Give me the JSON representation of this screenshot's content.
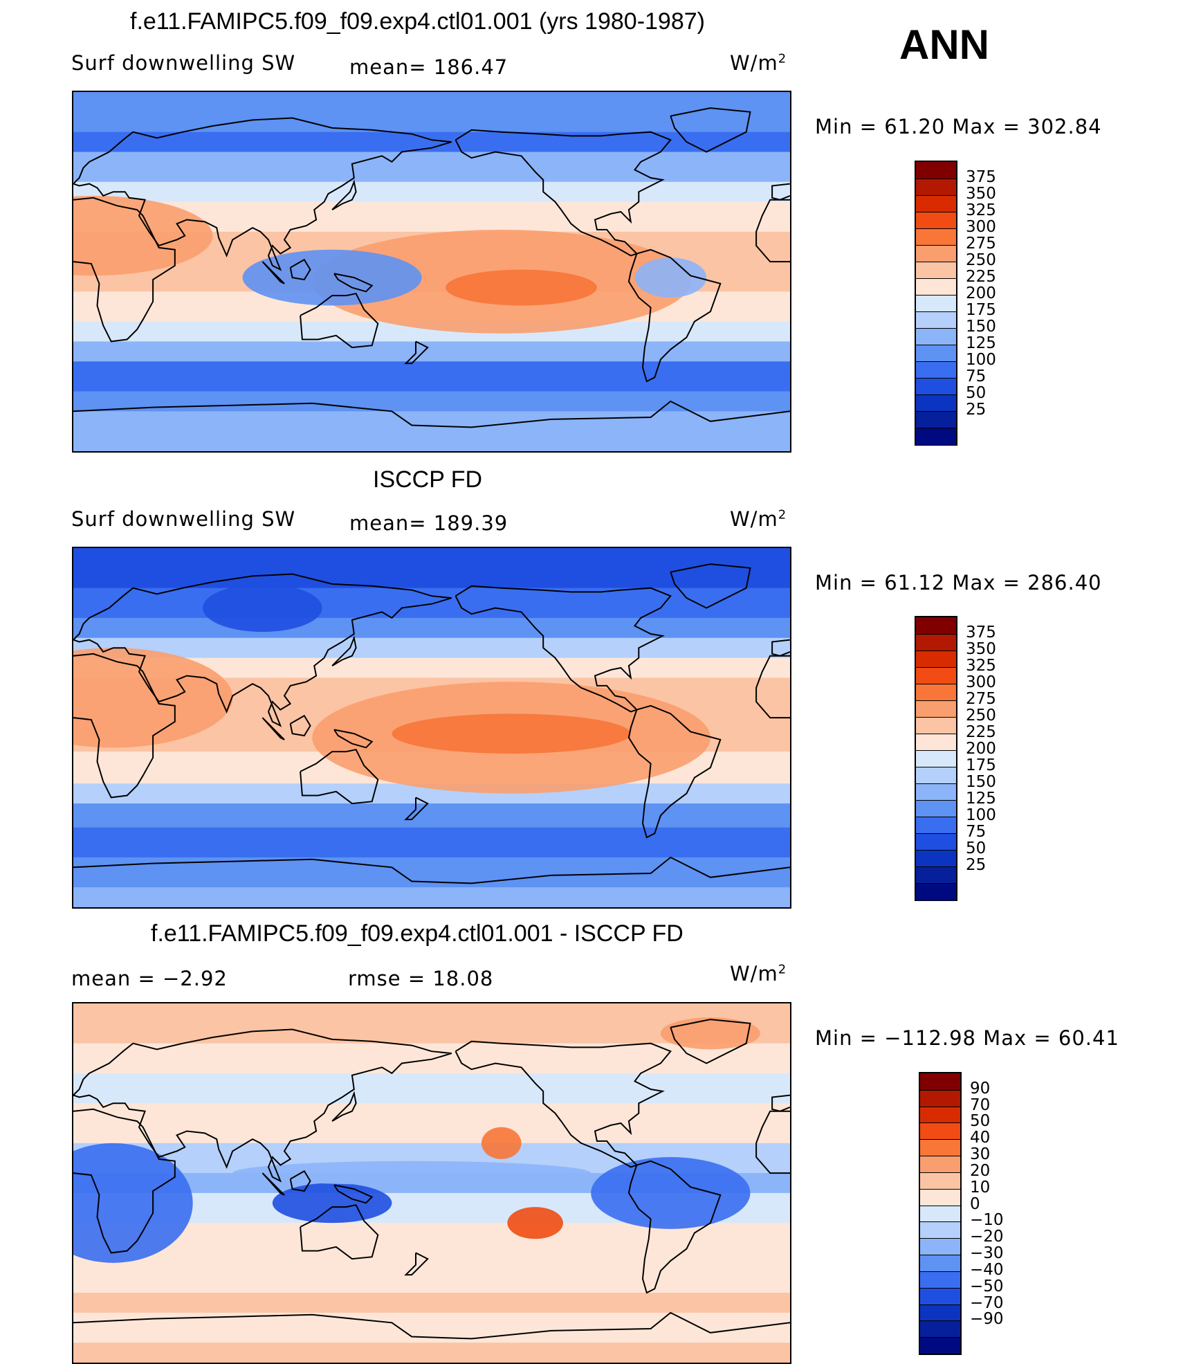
{
  "season": "ANN",
  "panels": [
    {
      "title": "f.e11.FAMIPC5.f09_f09.exp4.ctl01.001 (yrs 1980-1987)",
      "variable": "Surf  downwelling SW",
      "stat": "mean=  186.47",
      "units": "W/m",
      "units_sup": "2",
      "minmax": "Min  =    61.20  Max  =  302.84",
      "colorbar": {
        "labels": [
          "375",
          "350",
          "325",
          "300",
          "275",
          "250",
          "225",
          "200",
          "175",
          "150",
          "125",
          "100",
          "75",
          "50",
          "25"
        ],
        "colors": [
          "#800000",
          "#b31800",
          "#d82c00",
          "#f04c14",
          "#f77638",
          "#f99e6e",
          "#fbc4a4",
          "#fde6d8",
          "#d8e8fb",
          "#b4d0fb",
          "#8cb4f8",
          "#5e92f3",
          "#3a6ef0",
          "#1f4fe0",
          "#0b34c0",
          "#06209c",
          "#000a80"
        ]
      },
      "map_style": "model"
    },
    {
      "title": "ISCCP FD",
      "variable": "Surf  downwelling SW",
      "stat": "mean=  189.39",
      "units": "W/m",
      "units_sup": "2",
      "minmax": "Min  =    61.12  Max  =  286.40",
      "colorbar": {
        "labels": [
          "375",
          "350",
          "325",
          "300",
          "275",
          "250",
          "225",
          "200",
          "175",
          "150",
          "125",
          "100",
          "75",
          "50",
          "25"
        ],
        "colors": [
          "#800000",
          "#b31800",
          "#d82c00",
          "#f04c14",
          "#f77638",
          "#f99e6e",
          "#fbc4a4",
          "#fde6d8",
          "#d8e8fb",
          "#b4d0fb",
          "#8cb4f8",
          "#5e92f3",
          "#3a6ef0",
          "#1f4fe0",
          "#0b34c0",
          "#06209c",
          "#000a80"
        ]
      },
      "map_style": "obs"
    },
    {
      "title": "f.e11.FAMIPC5.f09_f09.exp4.ctl01.001 - ISCCP FD",
      "variable": "mean  =    −2.92",
      "stat": "rmse  =    18.08",
      "units": "W/m",
      "units_sup": "2",
      "minmax": "Min  = −112.98  Max  =    60.41",
      "colorbar": {
        "labels": [
          "90",
          "70",
          "50",
          "40",
          "30",
          "20",
          "10",
          "0",
          "−10",
          "−20",
          "−30",
          "−40",
          "−50",
          "−70",
          "−90"
        ],
        "colors": [
          "#800000",
          "#b31800",
          "#d82c00",
          "#f04c14",
          "#f77638",
          "#f99e6e",
          "#fbc4a4",
          "#fde6d8",
          "#d8e8fb",
          "#b4d0fb",
          "#8cb4f8",
          "#5e92f3",
          "#3a6ef0",
          "#1f4fe0",
          "#0b34c0",
          "#06209c",
          "#000a80"
        ]
      },
      "map_style": "diff"
    }
  ]
}
